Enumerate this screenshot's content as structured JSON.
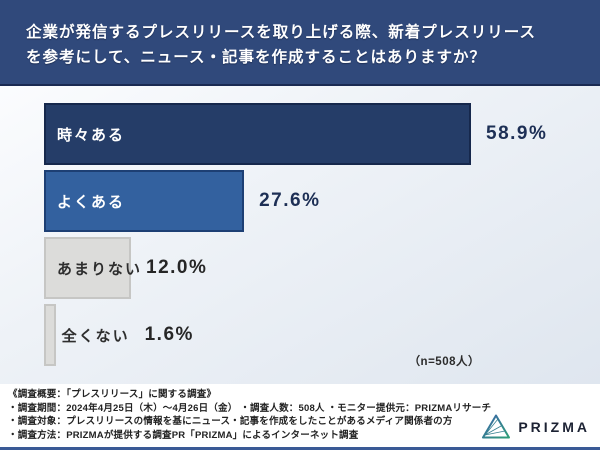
{
  "header": {
    "lines": [
      "企業が発信するプレスリリースを取り上げる際、新着プレスリリース",
      "を参考にして、ニュース・記事を作成することはありますか？"
    ]
  },
  "chart_data": {
    "type": "bar",
    "orientation": "horizontal",
    "title": "企業が発信するプレスリリースを取り上げる際、新着プレスリリースを参考にして、ニュース・記事を作成することはありますか？",
    "categories": [
      "時々ある",
      "よくある",
      "あまりない",
      "全くない"
    ],
    "values": [
      58.9,
      27.6,
      12.0,
      1.6
    ],
    "value_labels": [
      "58.9%",
      "27.6%",
      "12.0%",
      "1.6%"
    ],
    "sample_note": "（n=508人）",
    "xlim": [
      0,
      100
    ],
    "grid": false,
    "bars": [
      {
        "label": "時々ある",
        "value": 58.9,
        "display": "58.9%",
        "fill": "#253d68",
        "border": "#16284c",
        "label_color": "#ffffff",
        "label_inside": true,
        "value_color": "#1d2f55"
      },
      {
        "label": "よくある",
        "value": 27.6,
        "display": "27.6%",
        "fill": "#33619f",
        "border": "#1d3f74",
        "label_color": "#ffffff",
        "label_inside": true,
        "value_color": "#1d2f55"
      },
      {
        "label": "あまりない",
        "value": 12.0,
        "display": "12.0%",
        "fill": "#dcdcda",
        "border": "#c6c6c4",
        "label_color": "#2e2e2e",
        "label_inside": true,
        "value_color": "#262626"
      },
      {
        "label": "全くない",
        "value": 1.6,
        "display": "1.6%",
        "fill": "#dcdcda",
        "border": "#c6c6c4",
        "label_color": "#2e2e2e",
        "label_inside": false,
        "value_color": "#262626"
      }
    ]
  },
  "footer": {
    "lines": [
      "《調査概要：「プレスリリース」に関する調査》",
      "・調査期間：2024年4月25日（木）〜4月26日（金） ・調査人数：508人 ・モニター提供元：PRIZMAリサーチ",
      "・調査対象：プレスリリースの情報を基にニュース・記事を作成をしたことがあるメディア関係者の方",
      "・調査方法：PRIZMAが提供する調査PR「PRIZMA」によるインターネット調査"
    ]
  },
  "logo": {
    "text": "PRIZMA"
  },
  "colors": {
    "header_bg": "#30497b",
    "header_border": "#1a2a52",
    "bar_dark_navy": "#253d68",
    "bar_blue": "#33619f",
    "bar_gray": "#dcdcda",
    "chart_bg_top": "#fbfcfe",
    "chart_bg_bottom": "#dfe6ef",
    "bottom_accent": "#3a5a96",
    "logo_gradient_start": "#3b62ab",
    "logo_gradient_end": "#2f9e77"
  }
}
